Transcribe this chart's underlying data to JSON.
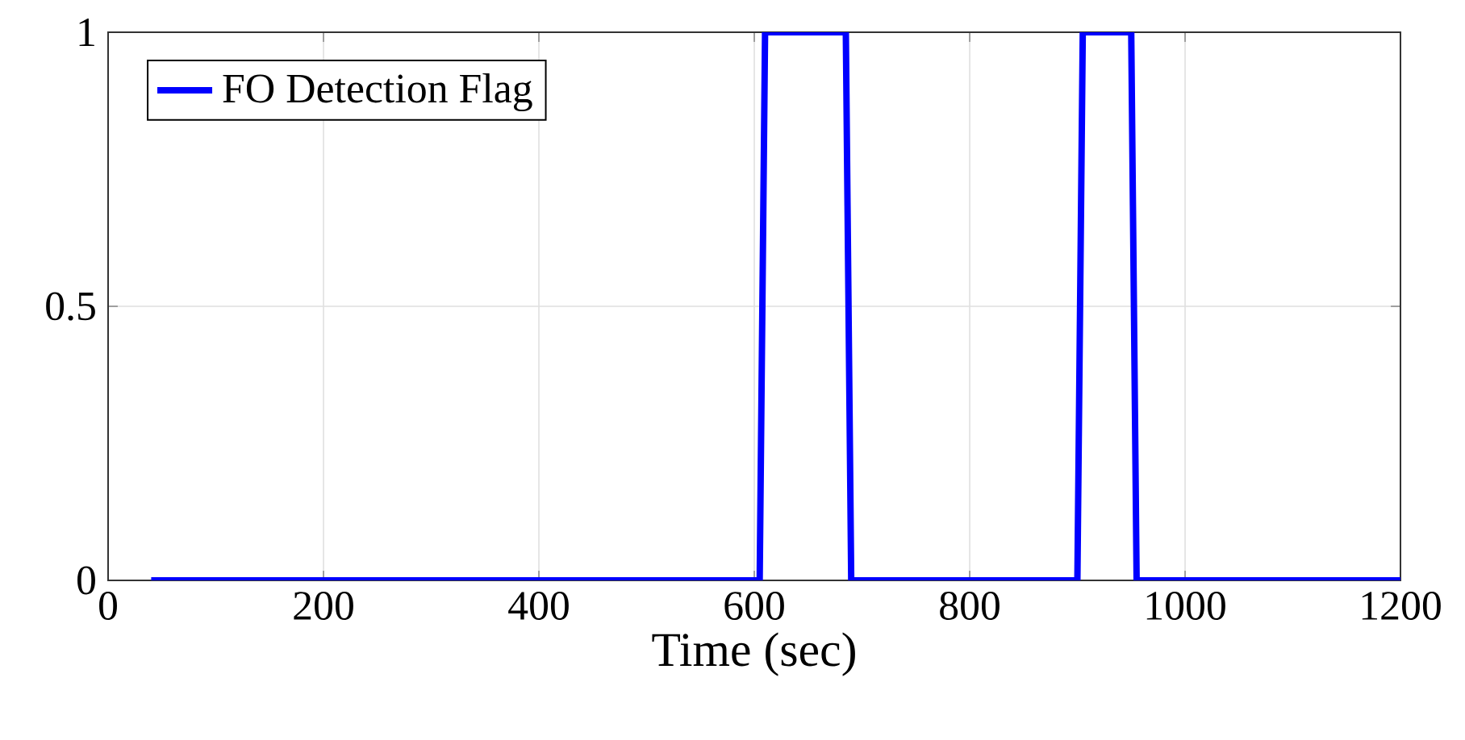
{
  "chart_data": {
    "type": "line",
    "xlabel": "Time (sec)",
    "x": [
      40,
      605,
      610,
      685,
      690,
      900,
      905,
      950,
      955,
      1200
    ],
    "series": [
      {
        "name": "FO Detection Flag",
        "color": "#0000ff",
        "values": [
          0,
          0,
          1,
          1,
          0,
          0,
          1,
          1,
          0,
          0
        ]
      }
    ],
    "xlim": [
      0,
      1200
    ],
    "ylim": [
      0,
      1
    ],
    "xticks": [
      0,
      200,
      400,
      600,
      800,
      1000,
      1200
    ],
    "yticks": [
      0,
      0.5,
      1
    ],
    "grid": true,
    "legend": "top left",
    "marker": "none",
    "line_style": "solid"
  }
}
